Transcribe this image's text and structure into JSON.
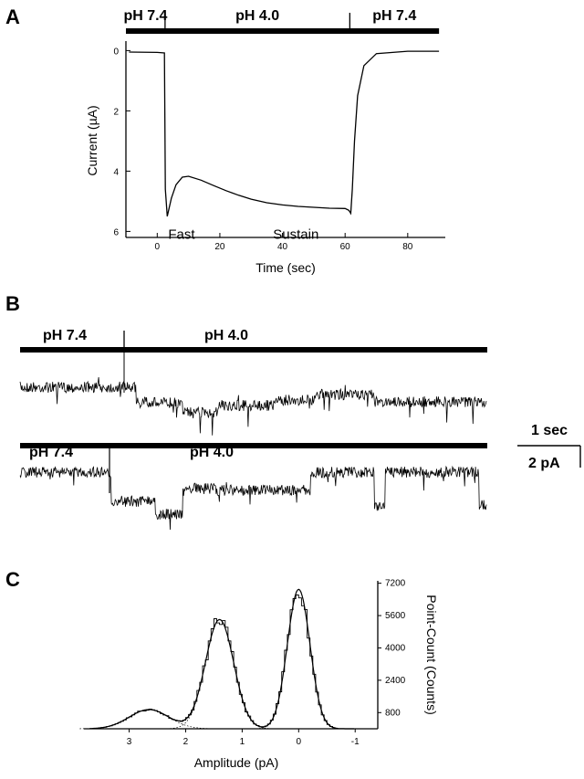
{
  "panels": {
    "a": "A",
    "b": "B",
    "c": "C"
  },
  "chart_data": [
    {
      "type": "line",
      "panel": "A",
      "xlabel": "Time (sec)",
      "ylabel": "Current (µA)",
      "xlim": [
        -10,
        92
      ],
      "ylim": [
        0,
        6.6
      ],
      "y_inverted": true,
      "xticks": [
        0,
        20,
        40,
        60,
        80
      ],
      "yticks": [
        0,
        2,
        4,
        6
      ],
      "stimulus": [
        {
          "label": "pH 7.4",
          "from": -10,
          "to": 2.5
        },
        {
          "label": "pH 4.0",
          "from": 2.5,
          "to": 61.5
        },
        {
          "label": "pH 7.4",
          "from": 61.5,
          "to": 90
        }
      ],
      "annotations": [
        {
          "text": "Fast",
          "x": 3.5,
          "y": 6.1
        },
        {
          "text": "Sustain",
          "x": 37,
          "y": 6.1
        }
      ],
      "series": [
        {
          "x": [
            -9,
            0,
            2.3,
            2.6,
            3.2,
            4.5,
            6,
            8,
            10,
            14,
            18,
            22,
            26,
            30,
            35,
            40,
            45,
            50,
            55,
            60,
            61.2,
            61.8,
            62.3,
            63,
            64,
            66,
            70,
            80,
            90
          ],
          "y": [
            0.05,
            0.06,
            0.08,
            4.6,
            5.5,
            4.9,
            4.45,
            4.2,
            4.17,
            4.3,
            4.48,
            4.65,
            4.8,
            4.93,
            5.05,
            5.12,
            5.17,
            5.2,
            5.23,
            5.24,
            5.3,
            5.4,
            4.6,
            3.0,
            1.5,
            0.5,
            0.1,
            0.02,
            0.02
          ]
        }
      ]
    },
    {
      "type": "line",
      "panel": "B",
      "traces": [
        {
          "left_label": "pH 7.4",
          "right_label": "pH 4.0"
        },
        {
          "left_label": "pH 7.4",
          "right_label": "pH 4.0"
        }
      ],
      "scale_bar": {
        "time": "1 sec",
        "current": "2 pA"
      }
    },
    {
      "type": "bar",
      "panel": "C",
      "xlabel": "Amplitude (pA)",
      "ylabel": "Point-Count (Counts)",
      "x_reversed": true,
      "xlim": [
        3.8,
        -1.4
      ],
      "ylim": [
        0,
        7500
      ],
      "xticks": [
        3,
        2,
        1,
        0,
        -1
      ],
      "yticks": [
        800,
        2400,
        4000,
        5600,
        7200
      ],
      "gaussians": [
        {
          "mean": 0.0,
          "sd": 0.2,
          "amp": 6900
        },
        {
          "mean": 1.4,
          "sd": 0.25,
          "amp": 5400
        },
        {
          "mean": 2.65,
          "sd": 0.35,
          "amp": 950
        }
      ]
    }
  ]
}
